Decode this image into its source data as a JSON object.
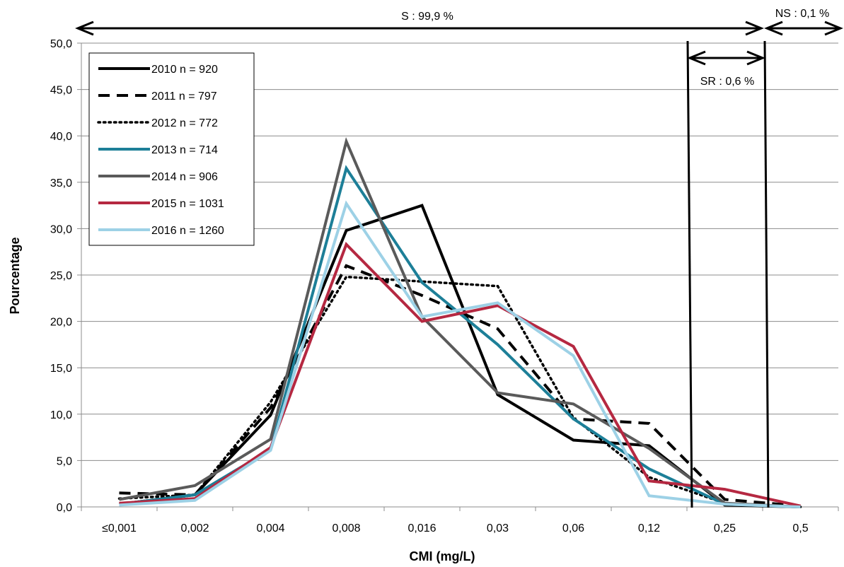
{
  "chart_data": {
    "type": "line",
    "title": "",
    "xlabel": "CMI (mg/L)",
    "ylabel": "Pourcentage",
    "categories": [
      "≤0,001",
      "0,002",
      "0,004",
      "0,008",
      "0,016",
      "0,03",
      "0,06",
      "0,12",
      "0,25",
      "0,5"
    ],
    "ylim": [
      0,
      50
    ],
    "yticks": [
      "0,0",
      "5,0",
      "10,0",
      "15,0",
      "20,0",
      "25,0",
      "30,0",
      "35,0",
      "40,0",
      "45,0",
      "50,0"
    ],
    "grid": "horizontal",
    "legend_position": "top-left",
    "series": [
      {
        "name": "2010  n = 920",
        "color": "#000000",
        "style": "solid",
        "values": [
          0.3,
          1.3,
          9.9,
          29.8,
          32.5,
          12.1,
          7.2,
          6.6,
          0.2,
          0.0
        ]
      },
      {
        "name": "2011  n = 797",
        "color": "#000000",
        "style": "dashed",
        "values": [
          1.5,
          1.3,
          10.7,
          26.0,
          22.8,
          19.2,
          9.5,
          9.0,
          0.8,
          0.1
        ]
      },
      {
        "name": "2012  n = 772",
        "color": "#000000",
        "style": "dotted",
        "values": [
          0.9,
          1.3,
          11.3,
          24.8,
          24.3,
          23.8,
          9.6,
          3.2,
          0.4,
          0.0
        ]
      },
      {
        "name": "2013  n = 714",
        "color": "#1d7f98",
        "style": "solid",
        "values": [
          0.3,
          1.3,
          6.2,
          36.5,
          24.2,
          17.5,
          9.5,
          4.1,
          0.3,
          0.0
        ]
      },
      {
        "name": "2014  n = 906",
        "color": "#5a5a5a",
        "style": "solid",
        "values": [
          0.8,
          2.3,
          7.3,
          39.4,
          20.5,
          12.3,
          11.1,
          6.3,
          0.4,
          0.0
        ]
      },
      {
        "name": "2015 n = 1031",
        "color": "#b52841",
        "style": "solid",
        "values": [
          0.4,
          0.9,
          6.4,
          28.3,
          20.0,
          21.7,
          17.3,
          2.8,
          1.9,
          0.1
        ]
      },
      {
        "name": "2016 n = 1260",
        "color": "#9dd1e6",
        "style": "solid",
        "values": [
          0.2,
          0.7,
          6.1,
          32.7,
          20.5,
          22.0,
          16.3,
          1.2,
          0.3,
          0.0
        ]
      }
    ],
    "annotations": {
      "s_label": "S : 99,9 %",
      "ns_label": "NS : 0,1 %",
      "sr_label": "SR : 0,6 %"
    }
  }
}
